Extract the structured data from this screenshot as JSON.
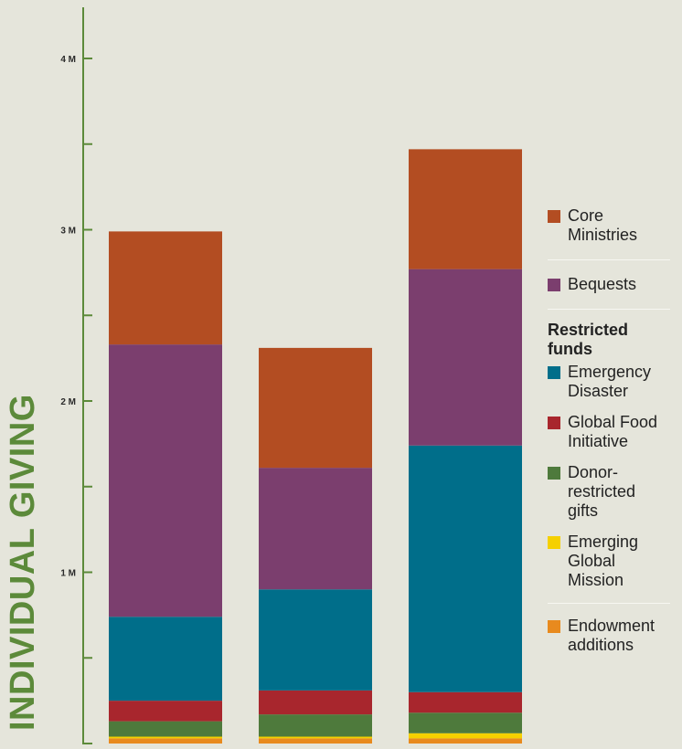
{
  "chart_data": {
    "type": "bar",
    "stacked": true,
    "title": "",
    "xlabel": "",
    "ylabel": "INDIVIDUAL GIVING",
    "ylim": [
      0,
      4.3
    ],
    "y_unit": "M",
    "y_ticks_major": [
      {
        "value": 1,
        "label": "1 M"
      },
      {
        "value": 2,
        "label": "2 M"
      },
      {
        "value": 3,
        "label": "3 M"
      },
      {
        "value": 4,
        "label": "4 M"
      }
    ],
    "y_ticks_minor": [
      0.5,
      1.5,
      2.5,
      3.5
    ],
    "grid": false,
    "categories": [
      "",
      "",
      ""
    ],
    "series": [
      {
        "name": "Endowment additions",
        "color": "#e88a1e",
        "values": [
          0.03,
          0.03,
          0.03
        ]
      },
      {
        "name": "Emerging Global Mission",
        "color": "#f5d000",
        "values": [
          0.01,
          0.01,
          0.03
        ]
      },
      {
        "name": "Donor-restricted gifts",
        "color": "#4e7a3c",
        "values": [
          0.09,
          0.13,
          0.12
        ]
      },
      {
        "name": "Global Food Initiative",
        "color": "#a8262d",
        "values": [
          0.12,
          0.14,
          0.12
        ]
      },
      {
        "name": "Emergency Disaster",
        "color": "#006e8a",
        "values": [
          0.49,
          0.59,
          1.44
        ]
      },
      {
        "name": "Bequests",
        "color": "#7b3e6e",
        "values": [
          1.59,
          0.71,
          1.03
        ]
      },
      {
        "name": "Core Ministries",
        "color": "#b34d22",
        "values": [
          0.66,
          0.7,
          0.7
        ]
      }
    ],
    "legend_position": "right"
  },
  "legend": {
    "core": "Core Ministries",
    "bequests": "Bequests",
    "restricted_heading": "Restricted funds",
    "emergency": "Emergency Disaster",
    "food": "Global Food Initiative",
    "donor": "Donor-restricted gifts",
    "emerging": "Emerging Global Mission",
    "endowment": "Endowment additions"
  },
  "colors": {
    "background": "#e5e5db",
    "axis": "#5c8a3a",
    "ylabel": "#5c8a3a"
  }
}
